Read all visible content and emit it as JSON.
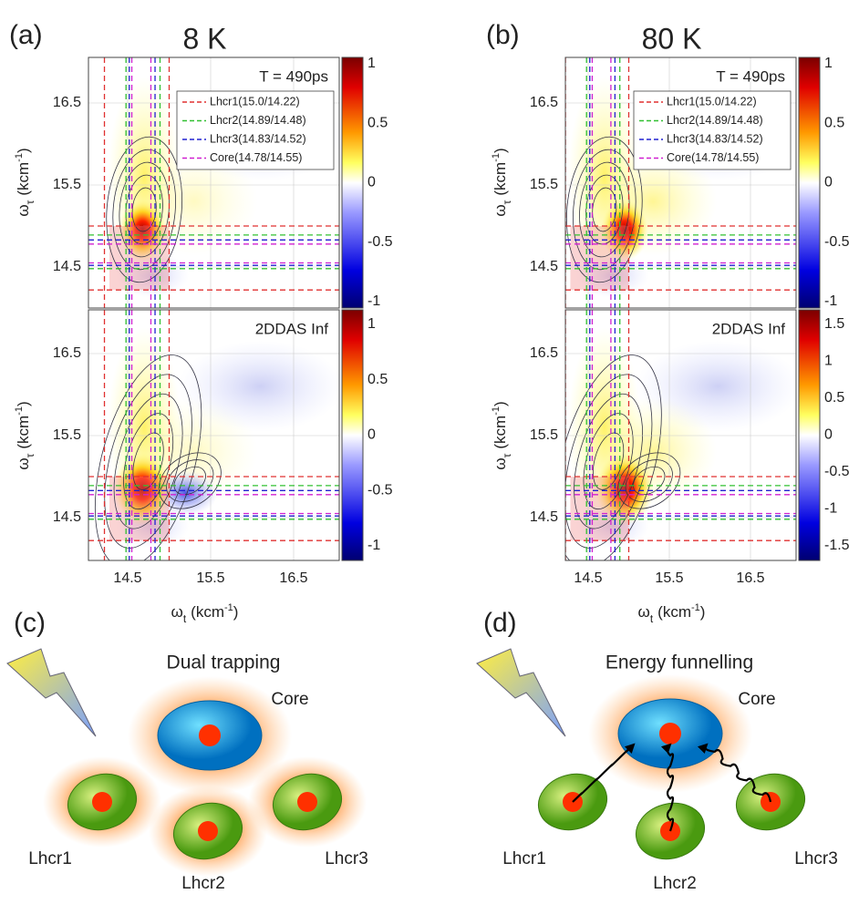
{
  "panels": [
    {
      "label": "(a)",
      "title": "8 K",
      "x_ticks": [
        "14.5",
        "15.5",
        "16.5"
      ],
      "y_ticks": [
        "16.5",
        "15.5",
        "14.5"
      ],
      "x_label": {
        "base": "ω",
        "sub": "t",
        "unit": "(kcm",
        "sup": "-1",
        "close": ")"
      },
      "y_label": {
        "base": "ω",
        "sub": "τ",
        "unit": "(kcm",
        "sup": "-1",
        "close": ")"
      },
      "plots": [
        {
          "annotation": "T = 490ps",
          "colorbar_ticks": [
            "1",
            "0.5",
            "0",
            "-0.5",
            "-1"
          ],
          "legend": [
            "Lhcr1(15.0/14.22)",
            "Lhcr2(14.89/14.48)",
            "Lhcr3(14.83/14.52)",
            "Core(14.78/14.55)"
          ]
        },
        {
          "annotation": "2DDAS Inf",
          "colorbar_ticks": [
            "1",
            "0.5",
            "0",
            "-0.5",
            "-1"
          ]
        }
      ]
    },
    {
      "label": "(b)",
      "title": "80 K",
      "x_ticks": [
        "14.5",
        "15.5",
        "16.5"
      ],
      "y_ticks": [
        "16.5",
        "15.5",
        "14.5"
      ],
      "x_label": {
        "base": "ω",
        "sub": "t",
        "unit": "(kcm",
        "sup": "-1",
        "close": ")"
      },
      "y_label": {
        "base": "ω",
        "sub": "τ",
        "unit": "(kcm",
        "sup": "-1",
        "close": ")"
      },
      "plots": [
        {
          "annotation": "T = 490ps",
          "colorbar_ticks": [
            "1",
            "0.5",
            "0",
            "-0.5",
            "-1"
          ],
          "legend": [
            "Lhcr1(15.0/14.22)",
            "Lhcr2(14.89/14.48)",
            "Lhcr3(14.83/14.52)",
            "Core(14.78/14.55)"
          ]
        },
        {
          "annotation": "2DDAS Inf",
          "colorbar_ticks": [
            "1.5",
            "1",
            "0.5",
            "0",
            "-0.5",
            "-1",
            "-1.5"
          ]
        }
      ]
    }
  ],
  "diagrams": [
    {
      "label": "(c)",
      "heading": "Dual trapping",
      "nodes": [
        "Core",
        "Lhcr1",
        "Lhcr2",
        "Lhcr3"
      ]
    },
    {
      "label": "(d)",
      "heading": "Energy funnelling",
      "nodes": [
        "Core",
        "Lhcr1",
        "Lhcr2",
        "Lhcr3"
      ]
    }
  ]
}
